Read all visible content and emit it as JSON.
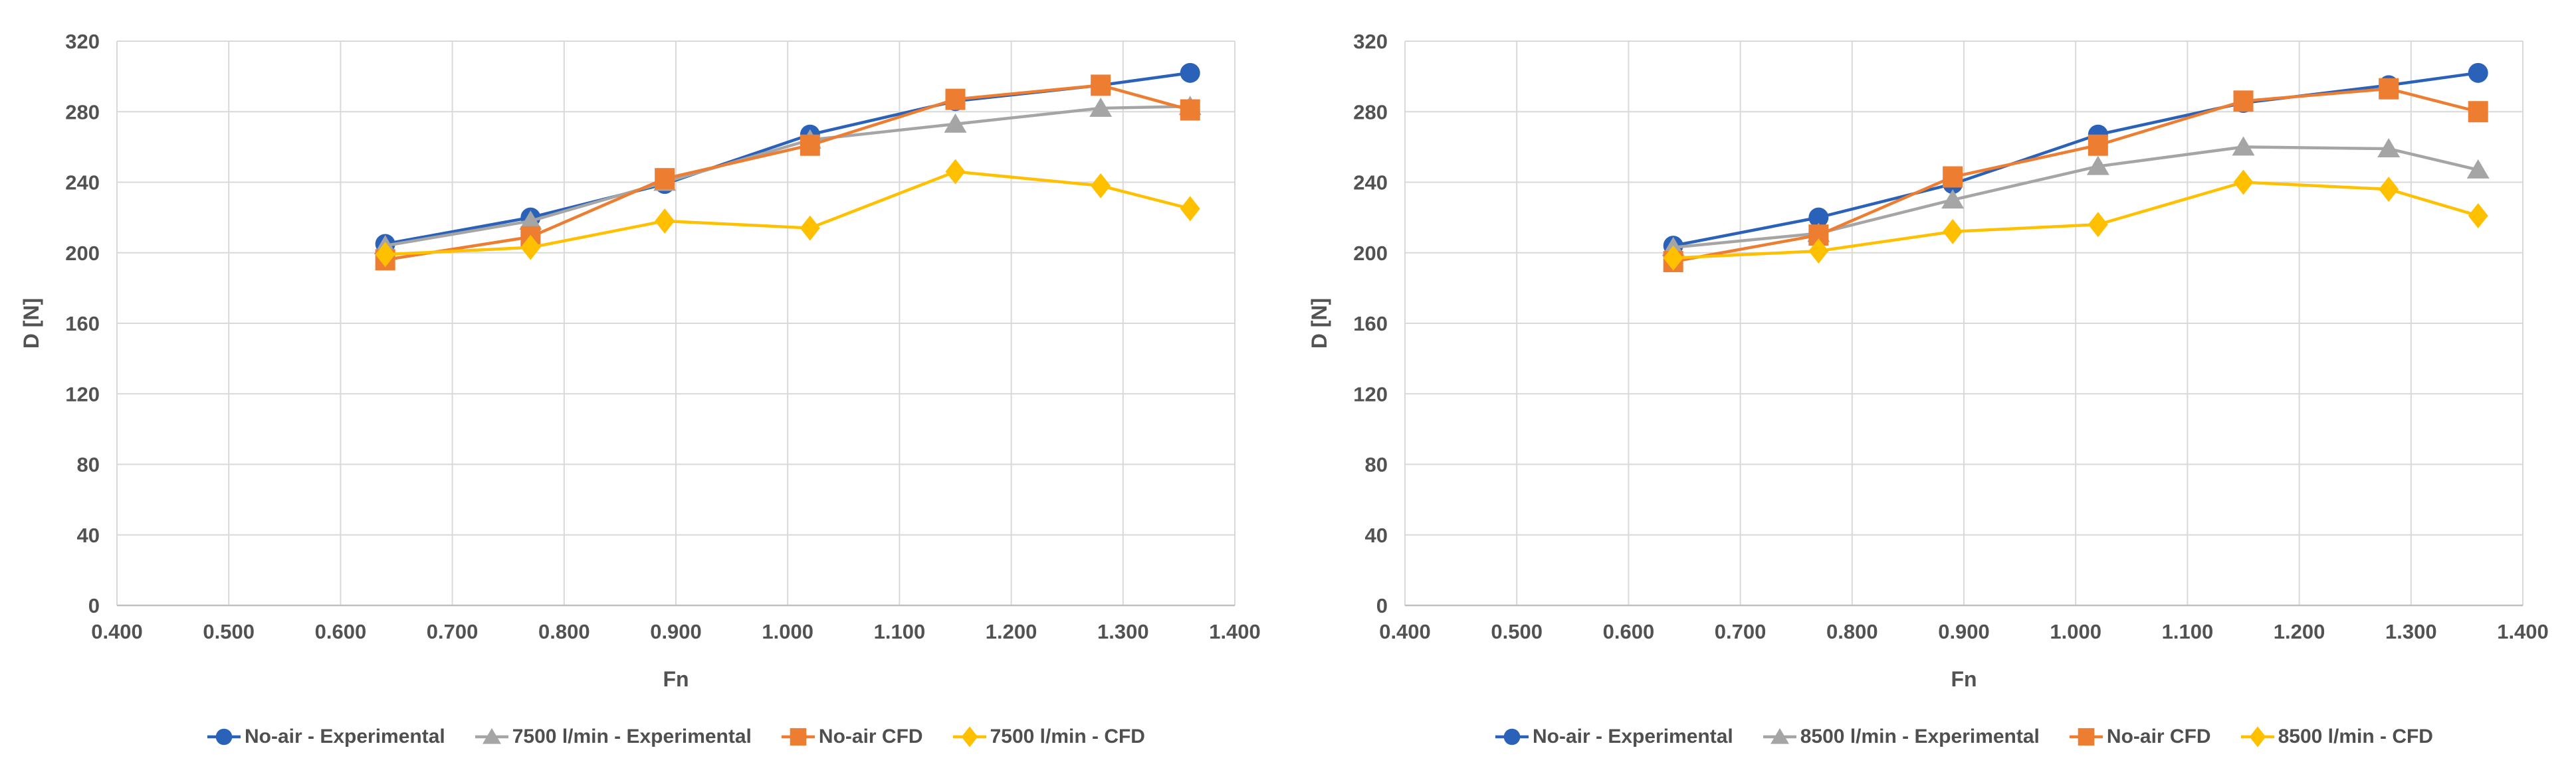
{
  "figure": {
    "background": "#ffffff",
    "grid_color": "#d9d9d9",
    "axis_line_color": "#bfbfbf",
    "text_color": "#525252"
  },
  "chart_data": [
    {
      "id": "chart-7500",
      "type": "line",
      "title": "",
      "xlabel": "Fn",
      "ylabel": "D [N]",
      "xlim": [
        0.4,
        1.4
      ],
      "ylim": [
        0,
        320
      ],
      "xtick_step": 0.1,
      "ytick_step": 40,
      "xtick_decimals": 3,
      "grid": true,
      "legend_position": "bottom",
      "x": [
        0.64,
        0.77,
        0.89,
        1.02,
        1.15,
        1.28,
        1.36
      ],
      "series": [
        {
          "name": "No-air - Experimental",
          "marker": "circle",
          "color": "#2b62b9",
          "values": [
            205,
            220,
            239,
            267,
            286,
            295,
            302
          ]
        },
        {
          "name": "7500 l/min - Experimental",
          "marker": "triangle",
          "color": "#a5a5a5",
          "values": [
            204,
            218,
            240,
            264,
            273,
            282,
            283
          ]
        },
        {
          "name": "No-air CFD",
          "marker": "square",
          "color": "#ed7d31",
          "values": [
            196,
            209,
            242,
            261,
            287,
            295,
            281
          ]
        },
        {
          "name": "7500 l/min - CFD",
          "marker": "diamond",
          "color": "#ffc000",
          "values": [
            199,
            203,
            218,
            214,
            246,
            238,
            225
          ]
        }
      ]
    },
    {
      "id": "chart-8500",
      "type": "line",
      "title": "",
      "xlabel": "Fn",
      "ylabel": "D [N]",
      "xlim": [
        0.4,
        1.4
      ],
      "ylim": [
        0,
        320
      ],
      "xtick_step": 0.1,
      "ytick_step": 40,
      "xtick_decimals": 3,
      "grid": true,
      "legend_position": "bottom",
      "x": [
        0.64,
        0.77,
        0.89,
        1.02,
        1.15,
        1.28,
        1.36
      ],
      "series": [
        {
          "name": "No-air - Experimental",
          "marker": "circle",
          "color": "#2b62b9",
          "values": [
            204,
            220,
            239,
            267,
            285,
            295,
            302
          ]
        },
        {
          "name": "8500 l/min - Experimental",
          "marker": "triangle",
          "color": "#a5a5a5",
          "values": [
            203,
            211,
            230,
            249,
            260,
            259,
            247
          ]
        },
        {
          "name": "No-air CFD",
          "marker": "square",
          "color": "#ed7d31",
          "values": [
            195,
            210,
            243,
            261,
            286,
            293,
            280
          ]
        },
        {
          "name": "8500 l/min - CFD",
          "marker": "diamond",
          "color": "#ffc000",
          "values": [
            197,
            201,
            212,
            216,
            240,
            236,
            221
          ]
        }
      ]
    }
  ]
}
